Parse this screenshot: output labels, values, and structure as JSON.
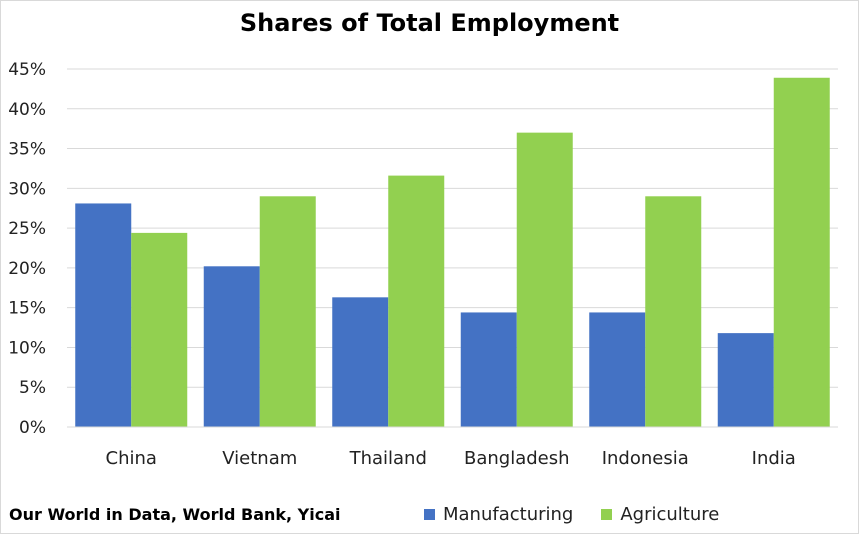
{
  "chart_data": {
    "type": "bar",
    "title": "Shares of Total Employment",
    "categories": [
      "China",
      "Vietnam",
      "Thailand",
      "Bangladesh",
      "Indonesia",
      "India"
    ],
    "series": [
      {
        "name": "Manufacturing",
        "color": "#4472c4",
        "values": [
          28.1,
          20.2,
          16.3,
          14.4,
          14.4,
          11.8
        ]
      },
      {
        "name": "Agriculture",
        "color": "#92d050",
        "values": [
          24.4,
          29.0,
          31.6,
          37.0,
          29.0,
          43.9
        ]
      }
    ],
    "yticks": [
      "0%",
      "5%",
      "10%",
      "15%",
      "20%",
      "25%",
      "30%",
      "35%",
      "40%",
      "45%"
    ],
    "ylim": [
      0,
      45
    ],
    "grid": true,
    "legend_position": "bottom-right",
    "source": "Our World in Data, World Bank, Yicai"
  }
}
